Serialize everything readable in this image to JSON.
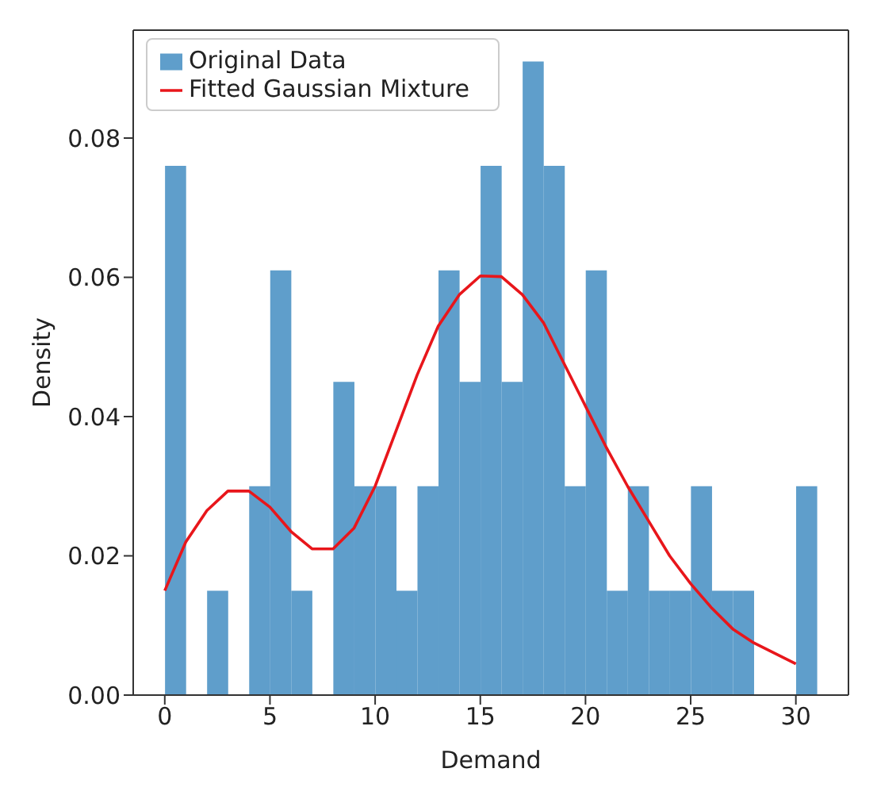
{
  "chart_data": {
    "type": "histogram",
    "xlabel": "Demand",
    "ylabel": "Density",
    "bins": [
      0,
      1,
      2,
      3,
      4,
      5,
      6,
      7,
      8,
      9,
      10,
      11,
      12,
      13,
      14,
      15,
      16,
      17,
      18,
      19,
      20,
      21,
      22,
      23,
      24,
      25,
      26,
      27,
      28,
      29,
      30,
      31
    ],
    "series": [
      {
        "name": "Original Data",
        "color": "#5f9ecb",
        "values": [
          0.076,
          0,
          0.015,
          0,
          0.03,
          0.061,
          0.015,
          0,
          0.045,
          0.03,
          0.03,
          0.015,
          0.03,
          0.061,
          0.045,
          0.076,
          0.045,
          0.091,
          0.076,
          0.03,
          0.061,
          0.015,
          0.03,
          0.015,
          0.015,
          0.03,
          0.015,
          0.015,
          0,
          0,
          0.03
        ]
      },
      {
        "type": "line",
        "name": "Fitted Gaussian Mixture",
        "color": "#e8161b",
        "x": [
          0,
          1,
          2,
          3,
          4,
          5,
          6,
          7,
          8,
          9,
          10,
          11,
          12,
          13,
          14,
          15,
          16,
          17,
          18,
          19,
          20,
          21,
          22,
          23,
          24,
          25,
          26,
          27,
          28,
          29,
          30
        ],
        "values": [
          0.015,
          0.022,
          0.0265,
          0.0293,
          0.0293,
          0.027,
          0.0235,
          0.021,
          0.021,
          0.024,
          0.03,
          0.038,
          0.046,
          0.053,
          0.0575,
          0.0602,
          0.0601,
          0.0575,
          0.0535,
          0.0475,
          0.0415,
          0.0355,
          0.03,
          0.025,
          0.02,
          0.016,
          0.0125,
          0.0095,
          0.0075,
          0.006,
          0.0045
        ]
      }
    ],
    "xlim": [
      -1.5,
      32.5
    ],
    "xticks": [
      0,
      5,
      10,
      15,
      20,
      25,
      30
    ],
    "ylim": [
      0,
      0.0955
    ],
    "yticks": [
      {
        "value": 0,
        "label": "0.00"
      },
      {
        "value": 0.02,
        "label": "0.02"
      },
      {
        "value": 0.04,
        "label": "0.04"
      },
      {
        "value": 0.06,
        "label": "0.06"
      },
      {
        "value": 0.08,
        "label": "0.08"
      }
    ],
    "legend": "top left",
    "grid": false
  }
}
